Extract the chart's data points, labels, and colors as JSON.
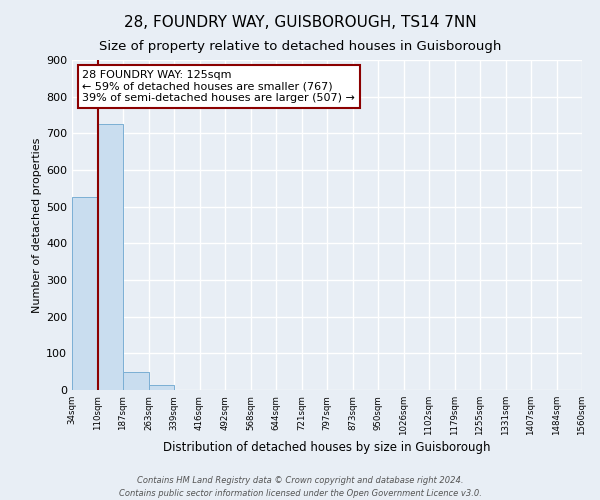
{
  "title": "28, FOUNDRY WAY, GUISBOROUGH, TS14 7NN",
  "subtitle": "Size of property relative to detached houses in Guisborough",
  "xlabel": "Distribution of detached houses by size in Guisborough",
  "ylabel": "Number of detached properties",
  "bin_labels": [
    "34sqm",
    "110sqm",
    "187sqm",
    "263sqm",
    "339sqm",
    "416sqm",
    "492sqm",
    "568sqm",
    "644sqm",
    "721sqm",
    "797sqm",
    "873sqm",
    "950sqm",
    "1026sqm",
    "1102sqm",
    "1179sqm",
    "1255sqm",
    "1331sqm",
    "1407sqm",
    "1484sqm",
    "1560sqm"
  ],
  "bar_heights": [
    527,
    726,
    50,
    13,
    0,
    0,
    0,
    0,
    0,
    0,
    0,
    0,
    0,
    0,
    0,
    0,
    0,
    0,
    0,
    0
  ],
  "bar_color": "#c9ddef",
  "bar_edge_color": "#7bafd4",
  "ylim": [
    0,
    900
  ],
  "yticks": [
    0,
    100,
    200,
    300,
    400,
    500,
    600,
    700,
    800,
    900
  ],
  "property_line_x": 0.5,
  "property_line_color": "#8b0000",
  "annotation_title": "28 FOUNDRY WAY: 125sqm",
  "annotation_line1": "← 59% of detached houses are smaller (767)",
  "annotation_line2": "39% of semi-detached houses are larger (507) →",
  "annotation_box_color": "#ffffff",
  "annotation_box_edge_color": "#8b0000",
  "footer_line1": "Contains HM Land Registry data © Crown copyright and database right 2024.",
  "footer_line2": "Contains public sector information licensed under the Open Government Licence v3.0.",
  "background_color": "#e8eef5",
  "grid_color": "#ffffff",
  "title_fontsize": 11,
  "subtitle_fontsize": 9.5
}
